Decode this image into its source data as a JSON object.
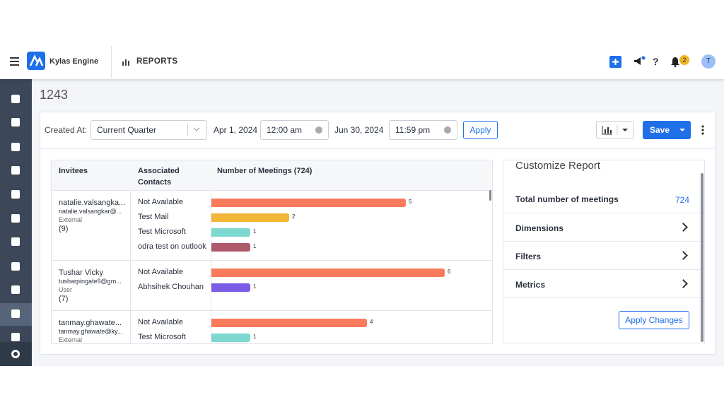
{
  "header": {
    "app_name": "Kylas Engine",
    "section": "REPORTS",
    "notification_count": "2",
    "avatar_initial": "T"
  },
  "report": {
    "title": "1243",
    "filters": {
      "label": "Created At:",
      "period": "Current Quarter",
      "start_date": "Apr 1, 2024",
      "start_time": "12:00 am",
      "end_date": "Jun 30, 2024",
      "end_time": "11:59 pm",
      "apply": "Apply"
    },
    "save": "Save"
  },
  "table": {
    "columns": [
      "Invitees",
      "Associated Contacts",
      "Number of Meetings (724)"
    ],
    "rows": [
      {
        "name": "natalie.valsangka...",
        "email": "natalie.valsangkar@...",
        "type": "External",
        "count": "(9)",
        "contacts": [
          {
            "name": "Not Available",
            "meetings": 5,
            "color": "#fa7a5c"
          },
          {
            "name": "Test Mail",
            "meetings": 2,
            "color": "#f2b636"
          },
          {
            "name": "Test Microsoft",
            "meetings": 1,
            "color": "#7dd9d0"
          },
          {
            "name": "odra test on outlook",
            "meetings": 1,
            "color": "#ae5a6b"
          }
        ]
      },
      {
        "name": "Tushar Vicky",
        "email": "tusharpingate9@gm...",
        "type": "User",
        "count": "(7)",
        "contacts": [
          {
            "name": "Not Available",
            "meetings": 6,
            "color": "#fa7a5c"
          },
          {
            "name": "Abhsihek Chouhan",
            "meetings": 1,
            "color": "#7b5ce6"
          }
        ]
      },
      {
        "name": "tanmay.ghawate...",
        "email": "tanmay.ghawate@ky...",
        "type": "External",
        "contacts": [
          {
            "name": "Not Available",
            "meetings": 4,
            "color": "#fa7a5c"
          },
          {
            "name": "Test Microsoft",
            "meetings": 1,
            "color": "#7dd9d0"
          }
        ]
      }
    ]
  },
  "customize": {
    "title": "Customize Report",
    "total_label": "Total number of meetings",
    "total_value": "724",
    "sections": [
      "Dimensions",
      "Filters",
      "Metrics"
    ],
    "apply": "Apply Changes"
  }
}
